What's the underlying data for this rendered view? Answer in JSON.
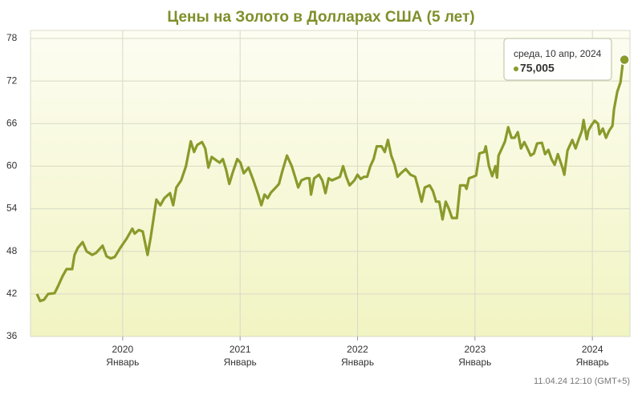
{
  "chart_data": {
    "type": "line",
    "title": "Цены на Золото в Долларах США (5 лет)",
    "timestamp": "11.04.24 12:10 (GMT+5)",
    "tooltip": {
      "date": "среда, 10 апр, 2024",
      "label": "75,005"
    },
    "xlim": [
      2019.215,
      2024.32
    ],
    "xticks": [
      2020,
      2021,
      2022,
      2023,
      2024
    ],
    "xtick_sublabels": [
      "Январь",
      "Январь",
      "Январь",
      "Январь",
      "Январь"
    ],
    "ylim": [
      36,
      78
    ],
    "yticks": [
      36,
      42,
      48,
      54,
      60,
      66,
      72,
      78
    ],
    "grid": true,
    "color": "#8a9a2b",
    "x": [
      2019.27,
      2019.297,
      2019.331,
      2019.365,
      2019.42,
      2019.447,
      2019.488,
      2019.522,
      2019.57,
      2019.59,
      2019.618,
      2019.659,
      2019.693,
      2019.741,
      2019.775,
      2019.829,
      2019.863,
      2019.898,
      2019.932,
      2019.98,
      2020.034,
      2020.082,
      2020.102,
      2020.137,
      2020.171,
      2020.212,
      2020.239,
      2020.287,
      2020.321,
      2020.355,
      2020.403,
      2020.43,
      2020.457,
      2020.498,
      2020.539,
      2020.58,
      2020.608,
      2020.635,
      2020.676,
      2020.703,
      2020.73,
      2020.758,
      2020.799,
      2020.826,
      2020.853,
      2020.881,
      2020.908,
      2020.935,
      2020.976,
      2021.003,
      2021.031,
      2021.072,
      2021.113,
      2021.154,
      2021.181,
      2021.208,
      2021.235,
      2021.263,
      2021.304,
      2021.331,
      2021.358,
      2021.399,
      2021.44,
      2021.468,
      2021.495,
      2021.522,
      2021.563,
      2021.59,
      2021.604,
      2021.631,
      2021.672,
      2021.7,
      2021.727,
      2021.754,
      2021.782,
      2021.809,
      2021.85,
      2021.877,
      2021.904,
      2021.932,
      2021.973,
      2022.0,
      2022.027,
      2022.055,
      2022.082,
      2022.109,
      2022.137,
      2022.164,
      2022.205,
      2022.232,
      2022.259,
      2022.287,
      2022.314,
      2022.341,
      2022.369,
      2022.41,
      2022.451,
      2022.491,
      2022.519,
      2022.546,
      2022.573,
      2022.614,
      2022.642,
      2022.669,
      2022.696,
      2022.724,
      2022.751,
      2022.778,
      2022.805,
      2022.846,
      2022.874,
      2022.915,
      2022.928,
      2022.949,
      2022.983,
      2023.01,
      2023.038,
      2023.079,
      2023.092,
      2023.119,
      2023.147,
      2023.174,
      2023.188,
      2023.201,
      2023.229,
      2023.256,
      2023.283,
      2023.311,
      2023.338,
      2023.365,
      2023.392,
      2023.42,
      2023.447,
      2023.474,
      2023.502,
      2023.529,
      2023.57,
      2023.597,
      2023.625,
      2023.652,
      2023.679,
      2023.706,
      2023.747,
      2023.761,
      2023.788,
      2023.829,
      2023.857,
      2023.884,
      2023.911,
      2023.925,
      2023.952,
      2023.966,
      2023.993,
      2024.02,
      2024.048,
      2024.061,
      2024.089,
      2024.116,
      2024.143,
      2024.171,
      2024.184,
      2024.212,
      2024.239,
      2024.259,
      2024.273
    ],
    "values": [
      42,
      41,
      41.2,
      42,
      42.1,
      43,
      44.5,
      45.5,
      45.5,
      47.5,
      48.5,
      49.3,
      48,
      47.5,
      47.8,
      48.8,
      47.3,
      47,
      47.2,
      48.5,
      49.8,
      51.2,
      50.5,
      51,
      50.8,
      47.5,
      50,
      55.3,
      54.5,
      55.5,
      56.2,
      54.5,
      57,
      58,
      60,
      63.5,
      62,
      63,
      63.4,
      62.5,
      59.8,
      61.3,
      60.8,
      60.5,
      61,
      59.5,
      57.5,
      59,
      61,
      60.5,
      59,
      59.8,
      58,
      56,
      54.5,
      56,
      55.5,
      56.3,
      57,
      57.5,
      59.2,
      61.5,
      60,
      58.5,
      57,
      58,
      58.3,
      58.3,
      56,
      58.3,
      58.8,
      58,
      56.2,
      58.3,
      58,
      58.2,
      58.5,
      60,
      58.5,
      57.3,
      58,
      58.8,
      58.2,
      58.5,
      58.5,
      60,
      61,
      62.8,
      62.8,
      62,
      63.7,
      61.5,
      60.3,
      58.5,
      59,
      59.6,
      58.8,
      58.5,
      56.8,
      55,
      57,
      57.3,
      56.5,
      55,
      55,
      52.5,
      55,
      54,
      52.7,
      52.7,
      57.3,
      57.3,
      56.8,
      58.3,
      58.5,
      58.7,
      61.8,
      62,
      62.8,
      60,
      58.6,
      60,
      58.4,
      61.5,
      62.5,
      63.5,
      65.5,
      64,
      64,
      64.8,
      62.5,
      63.4,
      62.5,
      61.5,
      61.8,
      63.2,
      63.3,
      61.7,
      62.3,
      61,
      60.2,
      61.7,
      59.7,
      58.8,
      62.2,
      63.7,
      62.5,
      63.8,
      65,
      66.5,
      63.8,
      65,
      65.8,
      66.4,
      66,
      64.5,
      65.3,
      64,
      65,
      65.7,
      68,
      70.5,
      71.8,
      74.5,
      75.005
    ]
  }
}
